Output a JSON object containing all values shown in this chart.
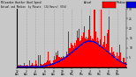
{
  "n_points": 1440,
  "seed": 42,
  "background_color": "#c8c8c8",
  "plot_bg_color": "#c8c8c8",
  "bar_color": "#ff0000",
  "median_color": "#0000dd",
  "ylim": [
    0,
    30
  ],
  "ytick_right": [
    5,
    10,
    15,
    20,
    25,
    30
  ],
  "grid_color": "#888888",
  "grid_interval": 120,
  "xtick_interval": 120,
  "legend_box_actual": "#ff0000",
  "legend_box_median": "#0000dd",
  "wind_profile": [
    0.5,
    0.5,
    0.5,
    0.5,
    0.5,
    0.5,
    1.0,
    1.5,
    2.5,
    3.5,
    5.0,
    7.0,
    9.0,
    11.0,
    13.0,
    14.0,
    13.5,
    12.0,
    10.0,
    8.0,
    6.0,
    4.0,
    2.5,
    1.5
  ]
}
